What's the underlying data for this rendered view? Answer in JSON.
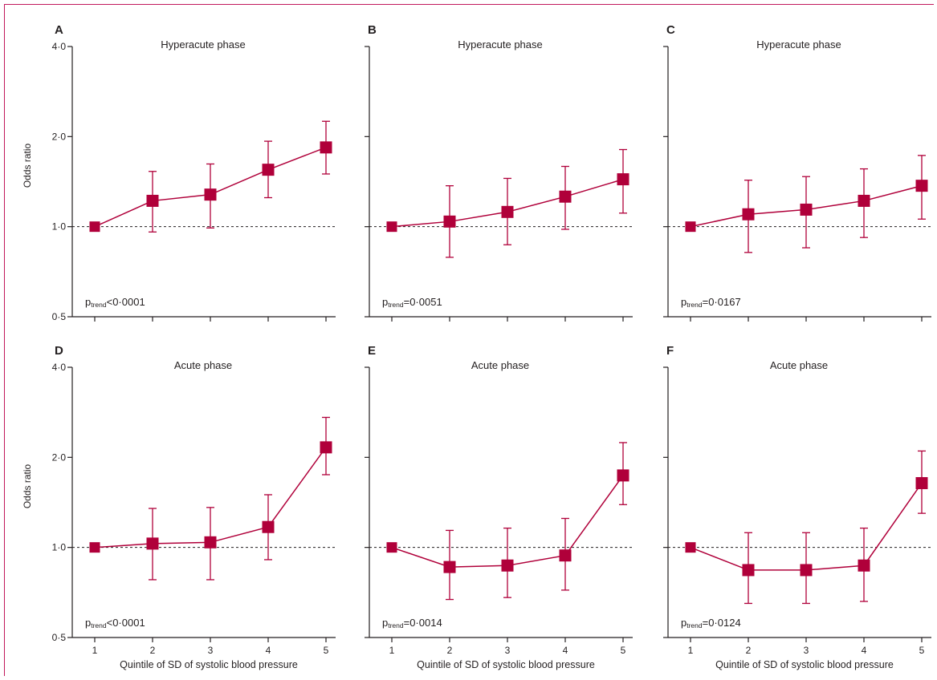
{
  "colors": {
    "marker": "#b0003a",
    "frame": "#c2185b",
    "axis": "#231f20"
  },
  "chart_data": [
    {
      "panel": "A",
      "type": "line",
      "title": "Hyperacute phase",
      "ylabel": "Odds ratio",
      "xlabel": "",
      "y_scale": "log",
      "ylim": [
        0.5,
        4.0
      ],
      "yticks": [
        0.5,
        1.0,
        2.0,
        4.0
      ],
      "ytick_labels": [
        "0·5",
        "1·0",
        "2·0",
        "4·0"
      ],
      "x": [
        1,
        2,
        3,
        4,
        5
      ],
      "xtick_labels": [],
      "values": [
        1.0,
        1.22,
        1.28,
        1.55,
        1.84
      ],
      "ci_lower": [
        1.0,
        0.96,
        0.99,
        1.25,
        1.5
      ],
      "ci_upper": [
        1.0,
        1.53,
        1.62,
        1.93,
        2.25
      ],
      "reference_line": 1.0,
      "annotation": {
        "p": "p",
        "sub": "trend",
        "rest": "<0·0001"
      }
    },
    {
      "panel": "B",
      "type": "line",
      "title": "Hyperacute phase",
      "ylabel": "",
      "xlabel": "",
      "y_scale": "log",
      "ylim": [
        0.5,
        4.0
      ],
      "yticks": [
        0.5,
        1.0,
        2.0,
        4.0
      ],
      "ytick_labels": [],
      "x": [
        1,
        2,
        3,
        4,
        5
      ],
      "xtick_labels": [],
      "values": [
        1.0,
        1.04,
        1.12,
        1.26,
        1.44
      ],
      "ci_lower": [
        1.0,
        0.79,
        0.87,
        0.98,
        1.11
      ],
      "ci_upper": [
        1.0,
        1.37,
        1.45,
        1.59,
        1.81
      ],
      "reference_line": 1.0,
      "annotation": {
        "p": "p",
        "sub": "trend",
        "rest": "=0·0051"
      }
    },
    {
      "panel": "C",
      "type": "line",
      "title": "Hyperacute phase",
      "ylabel": "",
      "xlabel": "",
      "y_scale": "log",
      "ylim": [
        0.5,
        4.0
      ],
      "yticks": [
        0.5,
        1.0,
        2.0,
        4.0
      ],
      "ytick_labels": [],
      "x": [
        1,
        2,
        3,
        4,
        5
      ],
      "xtick_labels": [],
      "values": [
        1.0,
        1.1,
        1.14,
        1.22,
        1.37
      ],
      "ci_lower": [
        1.0,
        0.82,
        0.85,
        0.92,
        1.06
      ],
      "ci_upper": [
        1.0,
        1.43,
        1.47,
        1.56,
        1.73
      ],
      "reference_line": 1.0,
      "annotation": {
        "p": "p",
        "sub": "trend",
        "rest": "=0·0167"
      }
    },
    {
      "panel": "D",
      "type": "line",
      "title": "Acute phase",
      "ylabel": "Odds ratio",
      "xlabel": "Quintile of SD of systolic blood pressure",
      "y_scale": "log",
      "ylim": [
        0.5,
        4.0
      ],
      "yticks": [
        0.5,
        1.0,
        2.0,
        4.0
      ],
      "ytick_labels": [
        "0·5",
        "1·0",
        "2·0",
        "4·0"
      ],
      "x": [
        1,
        2,
        3,
        4,
        5
      ],
      "xtick_labels": [
        "1",
        "2",
        "3",
        "4",
        "5"
      ],
      "values": [
        1.0,
        1.03,
        1.04,
        1.17,
        2.16
      ],
      "ci_lower": [
        1.0,
        0.78,
        0.78,
        0.91,
        1.75
      ],
      "ci_upper": [
        1.0,
        1.35,
        1.36,
        1.5,
        2.72
      ],
      "reference_line": 1.0,
      "annotation": {
        "p": "p",
        "sub": "trend",
        "rest": "<0·0001"
      }
    },
    {
      "panel": "E",
      "type": "line",
      "title": "Acute phase",
      "ylabel": "",
      "xlabel": "Quintile of SD of systolic blood pressure",
      "y_scale": "log",
      "ylim": [
        0.5,
        4.0
      ],
      "yticks": [
        0.5,
        1.0,
        2.0,
        4.0
      ],
      "ytick_labels": [],
      "x": [
        1,
        2,
        3,
        4,
        5
      ],
      "xtick_labels": [
        "1",
        "2",
        "3",
        "4",
        "5"
      ],
      "values": [
        1.0,
        0.86,
        0.87,
        0.94,
        1.74
      ],
      "ci_lower": [
        1.0,
        0.67,
        0.68,
        0.72,
        1.39
      ],
      "ci_upper": [
        1.0,
        1.14,
        1.16,
        1.25,
        2.24
      ],
      "reference_line": 1.0,
      "annotation": {
        "p": "p",
        "sub": "trend",
        "rest": "=0·0014"
      }
    },
    {
      "panel": "F",
      "type": "line",
      "title": "Acute phase",
      "ylabel": "",
      "xlabel": "Quintile of SD of systolic blood pressure",
      "y_scale": "log",
      "ylim": [
        0.5,
        4.0
      ],
      "yticks": [
        0.5,
        1.0,
        2.0,
        4.0
      ],
      "ytick_labels": [],
      "x": [
        1,
        2,
        3,
        4,
        5
      ],
      "xtick_labels": [
        "1",
        "2",
        "3",
        "4",
        "5"
      ],
      "values": [
        1.0,
        0.84,
        0.84,
        0.87,
        1.64
      ],
      "ci_lower": [
        1.0,
        0.65,
        0.65,
        0.66,
        1.3
      ],
      "ci_upper": [
        1.0,
        1.12,
        1.12,
        1.16,
        2.1
      ],
      "reference_line": 1.0,
      "annotation": {
        "p": "p",
        "sub": "trend",
        "rest": "=0·0124"
      }
    }
  ]
}
